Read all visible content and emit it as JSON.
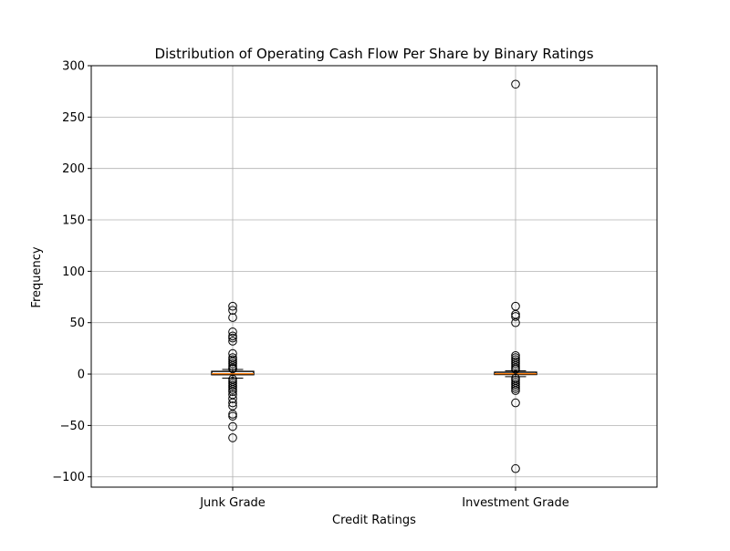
{
  "chart_data": {
    "type": "box",
    "title": "Distribution of Operating Cash Flow Per Share by Binary Ratings",
    "xlabel": "Credit Ratings",
    "ylabel": "Frequency",
    "ylim": [
      -110,
      300
    ],
    "yticks": [
      300,
      250,
      200,
      150,
      100,
      50,
      0,
      -50,
      -100
    ],
    "ytick_labels": [
      "300",
      "250",
      "200",
      "150",
      "100",
      "50",
      "0",
      "−50",
      "−100"
    ],
    "grid": true,
    "categories": [
      "Junk Grade",
      "Investment Grade"
    ],
    "boxes": [
      {
        "name": "Junk Grade",
        "q1": -0.6,
        "median": 0.3,
        "q3": 2.6,
        "whisker_low": -4,
        "whisker_high": 4.5,
        "outliers": [
          66,
          62,
          55,
          41,
          37,
          35,
          32,
          20,
          16,
          14,
          12,
          10,
          8,
          6,
          5,
          -5,
          -7,
          -9,
          -11,
          -13,
          -15,
          -17,
          -20,
          -24,
          -28,
          -31,
          -39,
          -41,
          -51,
          -62
        ]
      },
      {
        "name": "Investment Grade",
        "q1": -0.4,
        "median": 0.3,
        "q3": 1.8,
        "whisker_low": -2.5,
        "whisker_high": 3.2,
        "outliers": [
          282,
          66,
          58,
          56,
          50,
          18,
          16,
          14,
          12,
          10,
          8,
          6,
          4.5,
          -4,
          -6,
          -8,
          -10,
          -12,
          -14,
          -16,
          -28,
          -92
        ]
      }
    ],
    "colors": {
      "median": "#ff7f0e",
      "box": "#000000",
      "grid": "#b0b0b0"
    }
  }
}
